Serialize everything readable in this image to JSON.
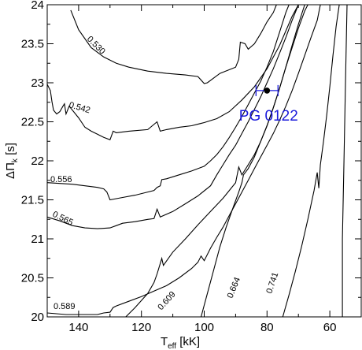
{
  "chart_data": {
    "type": "line",
    "xlabel": {
      "main": "T",
      "sub": "eff",
      "unit": " [kK]"
    },
    "ylabel": {
      "main": "ΔΠ",
      "sub": "k",
      "unit": " [s]"
    },
    "xlim": [
      150,
      50
    ],
    "ylim": [
      20,
      24
    ],
    "x_reversed": true,
    "x_ticks": [
      140,
      120,
      100,
      80,
      60
    ],
    "y_ticks": [
      20,
      20.5,
      21,
      21.5,
      22,
      22.5,
      23,
      23.5,
      24
    ],
    "y_tick_labels": [
      "20",
      "20.5",
      "21",
      "21.5",
      "22",
      "22.5",
      "23",
      "23.5",
      "24"
    ],
    "line_color": "#000000",
    "observation_color": "#1a1adb",
    "series": [
      {
        "name": "0.530",
        "points": [
          [
            142.5,
            23.93
          ],
          [
            140,
            23.68
          ],
          [
            136,
            23.45
          ],
          [
            132,
            23.33
          ],
          [
            128,
            23.25
          ],
          [
            124,
            23.2
          ],
          [
            118,
            23.15
          ],
          [
            112,
            23.12
          ],
          [
            106,
            23.1
          ],
          [
            102,
            23.08
          ],
          [
            100,
            22.99
          ],
          [
            99,
            23.0
          ],
          [
            95,
            23.12
          ],
          [
            90,
            23.2
          ],
          [
            89,
            23.3
          ],
          [
            88.5,
            23.52
          ],
          [
            87,
            23.5
          ],
          [
            86,
            23.43
          ],
          [
            84,
            23.5
          ],
          [
            82,
            23.63
          ],
          [
            80,
            23.78
          ],
          [
            78,
            23.9
          ],
          [
            77,
            24.0
          ]
        ]
      },
      {
        "name": "0.542",
        "points": [
          [
            150,
            22.98
          ],
          [
            149,
            22.9
          ],
          [
            148.5,
            22.76
          ],
          [
            148,
            22.65
          ],
          [
            147,
            22.6
          ],
          [
            146,
            22.63
          ],
          [
            145,
            22.7
          ],
          [
            144.5,
            22.73
          ],
          [
            144,
            22.6
          ],
          [
            143,
            22.7
          ],
          [
            140,
            22.55
          ],
          [
            138,
            22.43
          ],
          [
            136,
            22.38
          ],
          [
            134,
            22.34
          ],
          [
            132,
            22.3
          ],
          [
            130,
            22.27
          ],
          [
            129,
            22.38
          ],
          [
            128,
            22.36
          ],
          [
            124,
            22.38
          ],
          [
            118,
            22.4
          ],
          [
            115,
            22.5
          ],
          [
            114,
            22.38
          ],
          [
            112,
            22.4
          ],
          [
            108,
            22.43
          ],
          [
            104,
            22.45
          ],
          [
            100,
            22.49
          ],
          [
            96,
            22.54
          ],
          [
            92,
            22.63
          ],
          [
            88,
            22.78
          ],
          [
            84,
            22.95
          ],
          [
            80,
            23.18
          ],
          [
            76,
            23.48
          ],
          [
            72,
            23.85
          ],
          [
            70,
            24.0
          ]
        ]
      },
      {
        "name": "0.556",
        "points": [
          [
            150,
            21.72
          ],
          [
            146,
            21.71
          ],
          [
            142,
            21.7
          ],
          [
            138,
            21.68
          ],
          [
            134,
            21.66
          ],
          [
            132,
            21.64
          ],
          [
            131,
            21.6
          ],
          [
            130,
            21.5
          ],
          [
            126,
            21.53
          ],
          [
            122,
            21.56
          ],
          [
            118,
            21.6
          ],
          [
            116,
            21.62
          ],
          [
            115,
            21.66
          ],
          [
            114,
            21.68
          ],
          [
            113.5,
            21.76
          ],
          [
            112,
            21.77
          ],
          [
            108,
            21.82
          ],
          [
            104,
            21.87
          ],
          [
            100,
            21.93
          ],
          [
            98,
            22.0
          ],
          [
            96,
            22.08
          ],
          [
            94,
            22.18
          ],
          [
            92,
            22.3
          ],
          [
            90,
            22.43
          ],
          [
            88,
            22.57
          ],
          [
            86,
            22.72
          ],
          [
            84,
            22.87
          ],
          [
            82,
            23.02
          ],
          [
            80,
            23.2
          ],
          [
            78,
            23.4
          ],
          [
            76,
            23.65
          ],
          [
            74,
            23.9
          ],
          [
            73,
            24.0
          ]
        ]
      },
      {
        "name": "0.565",
        "points": [
          [
            150,
            21.28
          ],
          [
            146,
            21.23
          ],
          [
            142,
            21.17
          ],
          [
            138,
            21.14
          ],
          [
            134,
            21.13
          ],
          [
            130,
            21.14
          ],
          [
            128,
            21.17
          ],
          [
            126,
            21.2
          ],
          [
            122,
            21.22
          ],
          [
            118,
            21.25
          ],
          [
            116,
            21.26
          ],
          [
            115,
            21.38
          ],
          [
            114,
            21.28
          ],
          [
            110,
            21.35
          ],
          [
            106,
            21.45
          ],
          [
            102,
            21.55
          ],
          [
            98,
            21.68
          ],
          [
            96,
            21.82
          ],
          [
            94,
            21.95
          ],
          [
            92,
            22.08
          ],
          [
            90,
            22.2
          ],
          [
            88,
            22.35
          ],
          [
            86,
            22.5
          ],
          [
            84,
            22.66
          ],
          [
            82,
            22.82
          ],
          [
            80,
            23.0
          ],
          [
            78,
            23.18
          ],
          [
            76,
            23.38
          ],
          [
            74,
            23.58
          ],
          [
            72,
            23.8
          ],
          [
            70,
            24.0
          ]
        ]
      },
      {
        "name": "0.589",
        "points": [
          [
            150,
            20.05
          ],
          [
            144,
            20.03
          ],
          [
            138,
            20.03
          ],
          [
            134,
            20.03
          ],
          [
            132,
            20.05
          ],
          [
            130,
            20.06
          ],
          [
            129,
            20.12
          ],
          [
            128,
            20.14
          ],
          [
            124,
            20.2
          ],
          [
            120,
            20.26
          ],
          [
            116,
            20.33
          ],
          [
            112,
            20.4
          ],
          [
            108,
            20.5
          ],
          [
            104,
            20.62
          ],
          [
            102,
            20.7
          ],
          [
            101,
            20.78
          ],
          [
            100,
            20.72
          ],
          [
            98,
            20.88
          ],
          [
            96,
            21.02
          ],
          [
            94,
            21.15
          ],
          [
            92,
            21.3
          ],
          [
            90,
            21.45
          ],
          [
            88,
            21.6
          ],
          [
            86,
            21.75
          ],
          [
            84,
            21.9
          ],
          [
            82,
            22.05
          ],
          [
            80,
            22.2
          ],
          [
            78,
            22.35
          ],
          [
            76,
            22.52
          ],
          [
            74,
            22.7
          ],
          [
            72,
            22.9
          ],
          [
            70,
            23.12
          ],
          [
            68,
            23.35
          ],
          [
            66,
            23.58
          ],
          [
            64,
            23.8
          ],
          [
            63,
            24.0
          ]
        ]
      },
      {
        "name": "0.609",
        "points": [
          [
            125,
            20.0
          ],
          [
            122,
            20.12
          ],
          [
            118,
            20.3
          ],
          [
            116,
            20.44
          ],
          [
            115,
            20.55
          ],
          [
            113.5,
            20.75
          ],
          [
            113,
            20.66
          ],
          [
            110,
            20.83
          ],
          [
            106,
            21.0
          ],
          [
            102,
            21.18
          ],
          [
            98,
            21.35
          ],
          [
            94,
            21.52
          ],
          [
            92,
            21.62
          ],
          [
            90,
            21.72
          ],
          [
            89,
            21.92
          ],
          [
            88,
            21.82
          ],
          [
            86,
            21.95
          ],
          [
            84,
            22.08
          ],
          [
            82,
            22.25
          ],
          [
            80,
            22.45
          ],
          [
            78,
            22.68
          ],
          [
            76,
            22.93
          ],
          [
            74,
            23.2
          ],
          [
            72,
            23.45
          ],
          [
            70,
            23.7
          ],
          [
            68,
            23.92
          ],
          [
            67,
            24.0
          ]
        ]
      },
      {
        "name": "0.664",
        "points": [
          [
            101,
            20.0
          ],
          [
            99,
            20.3
          ],
          [
            97,
            20.6
          ],
          [
            95,
            20.9
          ],
          [
            93,
            21.15
          ],
          [
            91,
            21.38
          ],
          [
            89,
            21.6
          ],
          [
            88,
            21.72
          ],
          [
            87.5,
            21.82
          ],
          [
            86,
            21.9
          ],
          [
            84,
            22.05
          ],
          [
            82,
            22.25
          ],
          [
            80,
            22.45
          ],
          [
            78,
            22.68
          ],
          [
            76,
            22.93
          ],
          [
            74,
            23.2
          ],
          [
            72,
            23.48
          ],
          [
            70,
            23.75
          ],
          [
            68,
            24.0
          ]
        ]
      },
      {
        "name": "0.741",
        "points": [
          [
            75,
            20.0
          ],
          [
            73,
            20.28
          ],
          [
            71,
            20.58
          ],
          [
            69,
            20.9
          ],
          [
            67,
            21.25
          ],
          [
            65,
            21.62
          ],
          [
            64,
            21.85
          ],
          [
            63.5,
            21.65
          ],
          [
            63,
            21.95
          ],
          [
            62,
            22.25
          ],
          [
            61,
            22.58
          ],
          [
            60,
            22.95
          ],
          [
            59,
            23.35
          ],
          [
            58,
            23.72
          ],
          [
            57,
            24.0
          ]
        ]
      },
      {
        "name": "",
        "points": [
          [
            56,
            20.0
          ],
          [
            56,
            21.0
          ],
          [
            55.5,
            22.0
          ],
          [
            55,
            23.0
          ],
          [
            54.5,
            24.0
          ]
        ]
      }
    ],
    "observation": {
      "label": "PG 0122",
      "x": 80,
      "y": 22.9,
      "x_err": [
        83.5,
        76.5
      ],
      "y_err": [
        22.85,
        22.95
      ]
    }
  }
}
